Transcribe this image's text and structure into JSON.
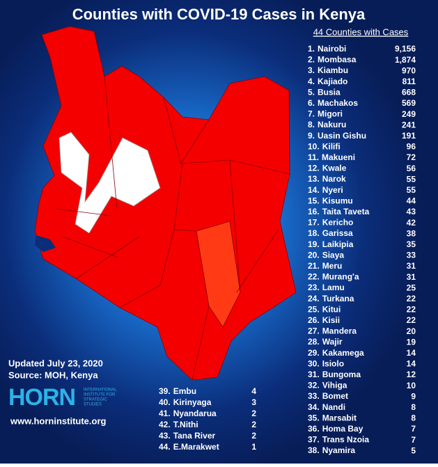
{
  "header": {
    "title": "Counties with COVID-19 Cases in Kenya",
    "list_title": "44 Counties with Cases"
  },
  "list_right": [
    {
      "rank": "1.",
      "name": "Nairobi",
      "cases": "9,156"
    },
    {
      "rank": "2.",
      "name": "Mombasa",
      "cases": "1,874"
    },
    {
      "rank": "3.",
      "name": "Kiambu",
      "cases": "970"
    },
    {
      "rank": "4.",
      "name": "Kajiado",
      "cases": "811"
    },
    {
      "rank": "5.",
      "name": "Busia",
      "cases": "668"
    },
    {
      "rank": "6.",
      "name": "Machakos",
      "cases": "569"
    },
    {
      "rank": "7.",
      "name": "Migori",
      "cases": "249"
    },
    {
      "rank": "8.",
      "name": "Nakuru",
      "cases": "241"
    },
    {
      "rank": "9.",
      "name": "Uasin Gishu",
      "cases": "191"
    },
    {
      "rank": "10.",
      "name": "Kilifi",
      "cases": "96"
    },
    {
      "rank": "11.",
      "name": "Makueni",
      "cases": "72"
    },
    {
      "rank": "12.",
      "name": "Kwale",
      "cases": "56"
    },
    {
      "rank": "13.",
      "name": "Narok",
      "cases": "55"
    },
    {
      "rank": "14.",
      "name": "Nyeri",
      "cases": "55"
    },
    {
      "rank": "15.",
      "name": "Kisumu",
      "cases": "44"
    },
    {
      "rank": "16.",
      "name": "Taita Taveta",
      "cases": "43"
    },
    {
      "rank": "17.",
      "name": "Kericho",
      "cases": "42"
    },
    {
      "rank": "18.",
      "name": "Garissa",
      "cases": "38"
    },
    {
      "rank": "19.",
      "name": "Laikipia",
      "cases": "35"
    },
    {
      "rank": "20.",
      "name": "Siaya",
      "cases": "33"
    },
    {
      "rank": "21.",
      "name": "Meru",
      "cases": "31"
    },
    {
      "rank": "22.",
      "name": "Murang'a",
      "cases": "31"
    },
    {
      "rank": "23.",
      "name": "Lamu",
      "cases": "25"
    },
    {
      "rank": "24.",
      "name": "Turkana",
      "cases": "22"
    },
    {
      "rank": "25.",
      "name": "Kitui",
      "cases": "22"
    },
    {
      "rank": "26.",
      "name": "Kisii",
      "cases": "22"
    },
    {
      "rank": "27.",
      "name": "Mandera",
      "cases": "20"
    },
    {
      "rank": "28.",
      "name": "Wajir",
      "cases": "19"
    },
    {
      "rank": "29.",
      "name": "Kakamega",
      "cases": "14"
    },
    {
      "rank": "30.",
      "name": "Isiolo",
      "cases": "14"
    },
    {
      "rank": "31.",
      "name": "Bungoma",
      "cases": "12"
    },
    {
      "rank": "32.",
      "name": "Vihiga",
      "cases": "10"
    },
    {
      "rank": "33.",
      "name": "Bomet",
      "cases": "9"
    },
    {
      "rank": "34.",
      "name": "Nandi",
      "cases": "8"
    },
    {
      "rank": "35.",
      "name": "Marsabit",
      "cases": "8"
    },
    {
      "rank": "36.",
      "name": "Homa Bay",
      "cases": "7"
    },
    {
      "rank": "37.",
      "name": "Trans Nzoia",
      "cases": "7"
    },
    {
      "rank": "38.",
      "name": "Nyamira",
      "cases": "5"
    }
  ],
  "list_bottom": [
    {
      "rank": "39.",
      "name": "Embu",
      "cases": "4"
    },
    {
      "rank": "40.",
      "name": "Kirinyaga",
      "cases": "3"
    },
    {
      "rank": "41.",
      "name": "Nyandarua",
      "cases": "2"
    },
    {
      "rank": "42.",
      "name": "T.Nithi",
      "cases": "2"
    },
    {
      "rank": "43.",
      "name": "Tana River",
      "cases": "2"
    },
    {
      "rank": "44.",
      "name": "E.Marakwet",
      "cases": "1"
    }
  ],
  "footer": {
    "updated": "Updated July 23, 2020",
    "source": "Source: MOH, Kenya",
    "logo": "HORN",
    "logo_sub": [
      "INTERNATIONAL",
      "INSTITUTE FOR",
      "STRATEGIC",
      "STUDIES"
    ],
    "website": "www.horninstitute.org"
  }
}
